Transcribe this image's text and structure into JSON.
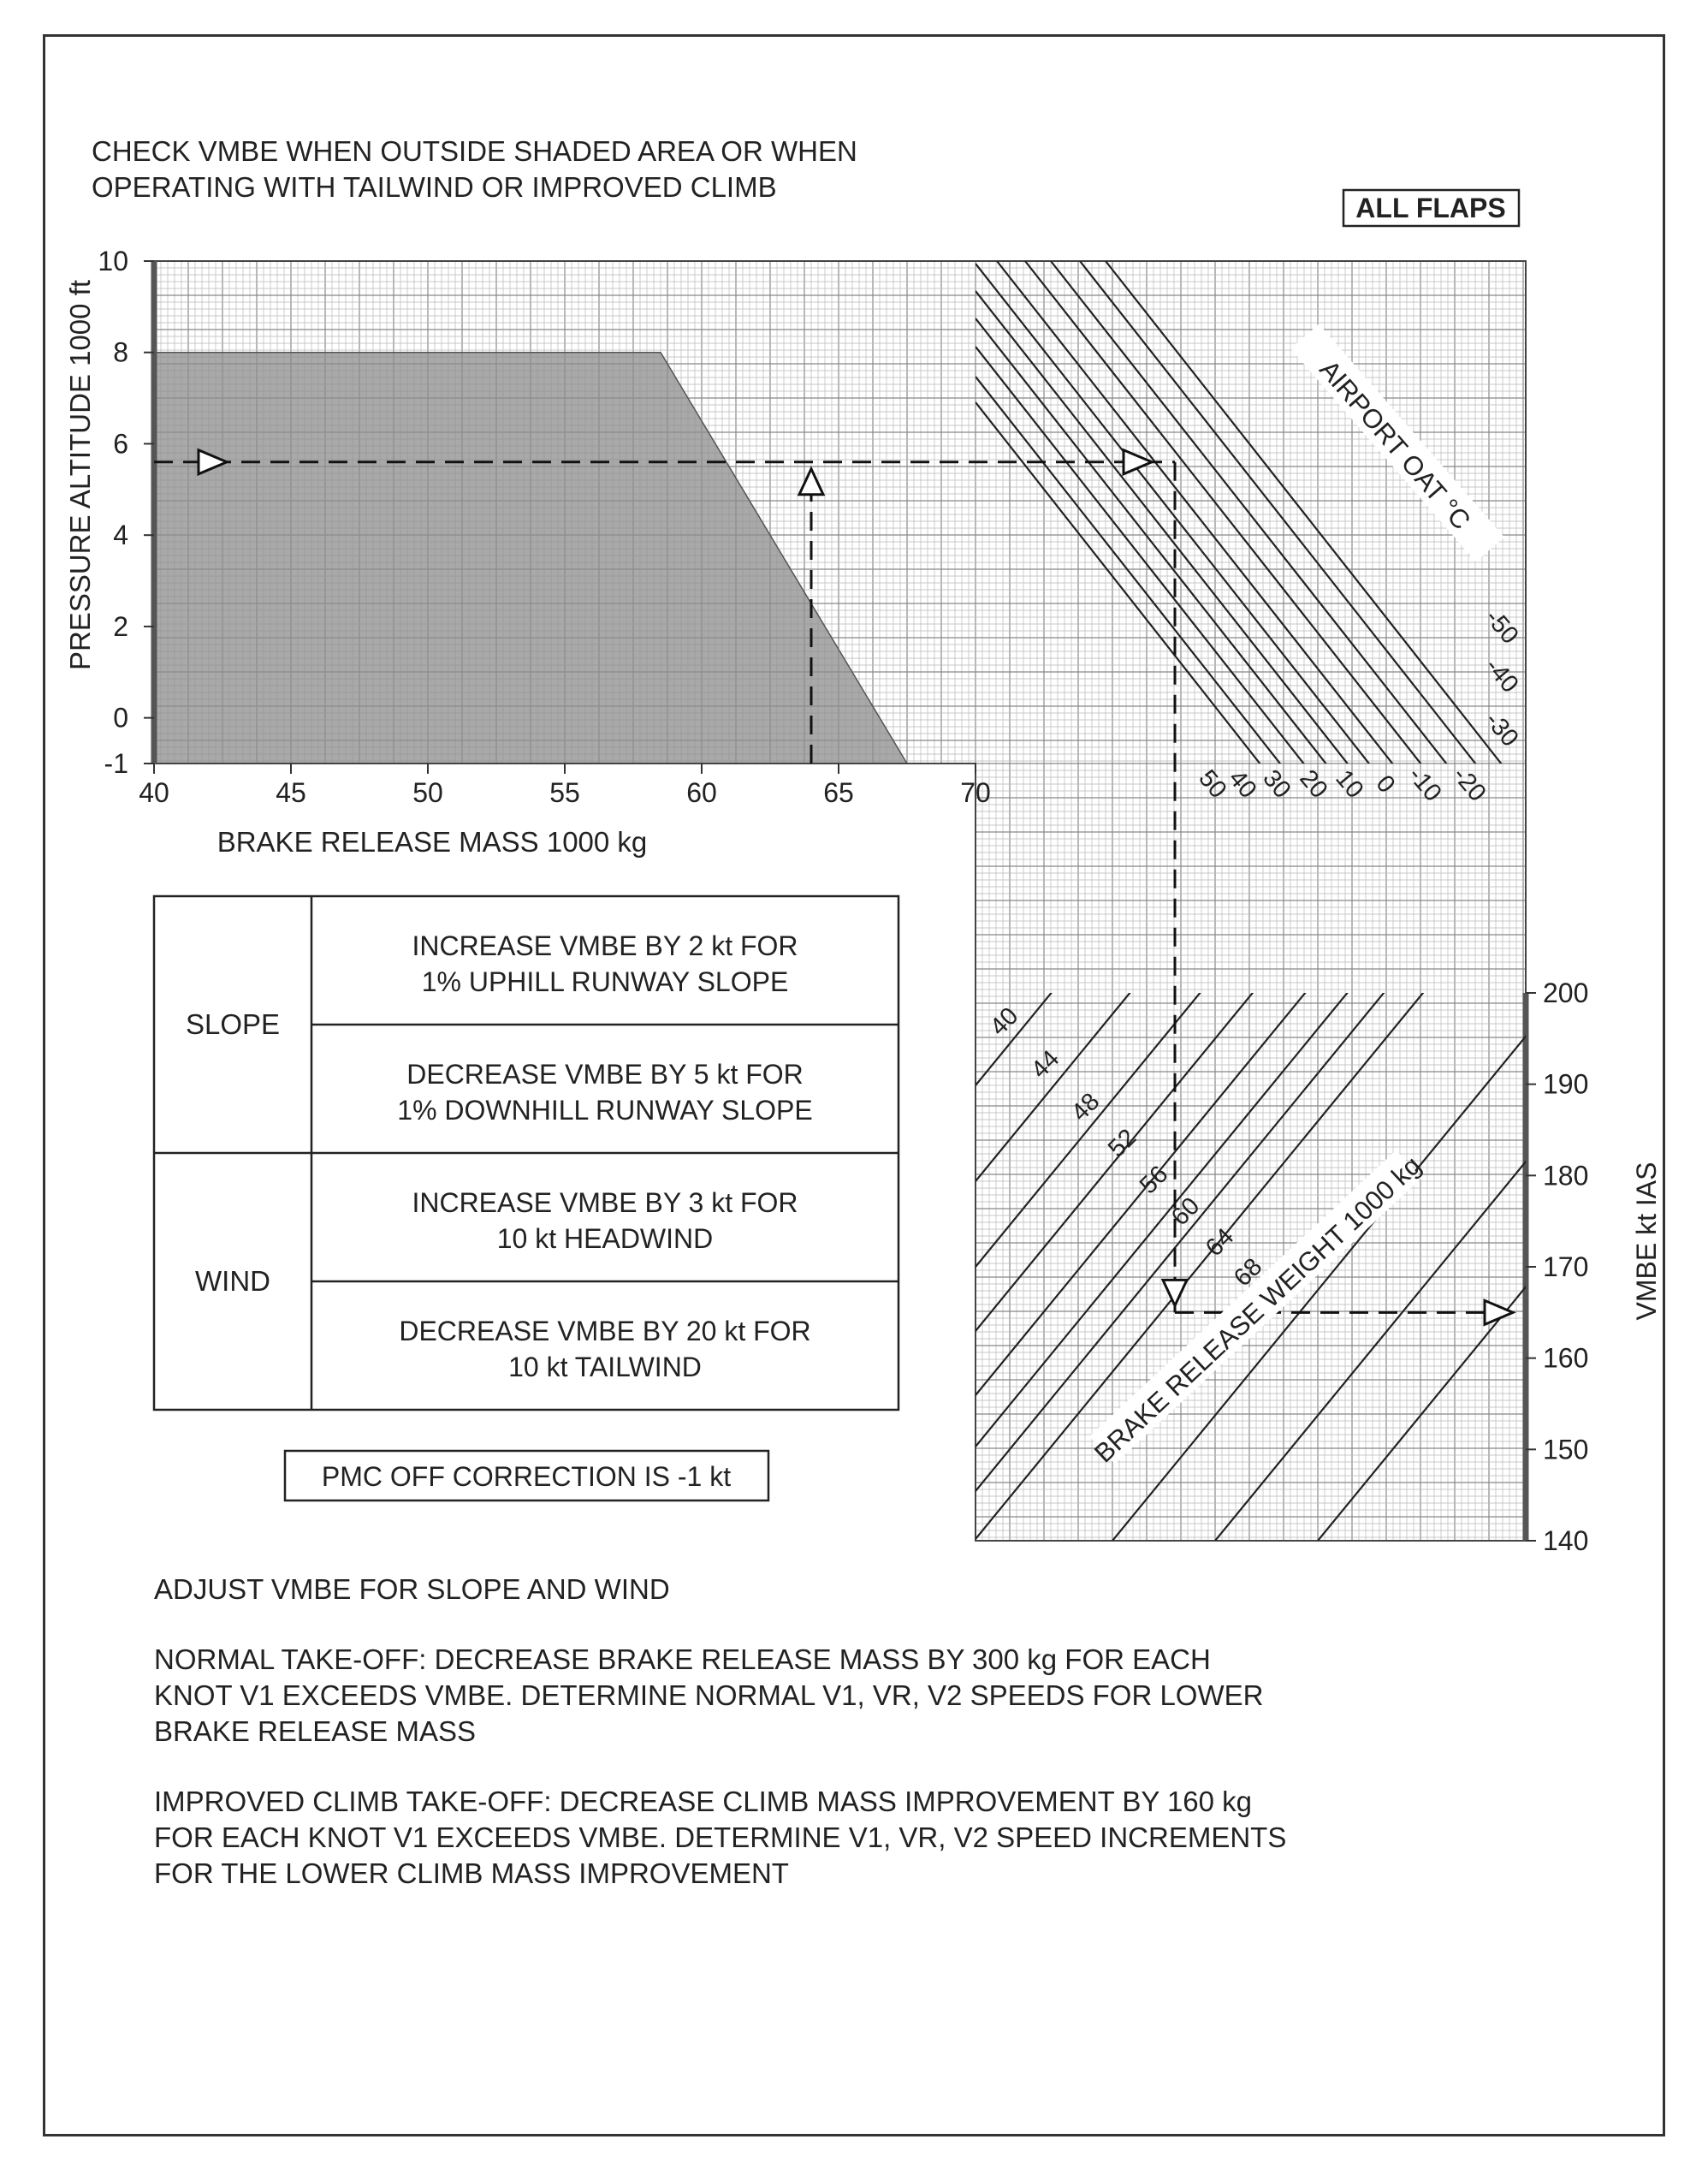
{
  "header": {
    "check_line1": "CHECK VMBE WHEN OUTSIDE SHADED AREA OR WHEN",
    "check_line2": "OPERATING WITH TAILWIND OR IMPROVED CLIMB",
    "flaps_label": "ALL FLAPS"
  },
  "chart_data": [
    {
      "type": "area",
      "panel": "pressure-altitude vs brake release mass",
      "ylabel": "PRESSURE ALTITUDE  1000 ft",
      "xlabel": "BRAKE RELEASE MASS  1000 kg",
      "xlim": [
        40,
        70
      ],
      "ylim": [
        -1,
        10
      ],
      "x_ticks": [
        "40",
        "45",
        "50",
        "55",
        "60",
        "65",
        "70"
      ],
      "y_ticks": [
        "10",
        "8",
        "6",
        "4",
        "2",
        "0",
        "-1"
      ],
      "shaded_region": {
        "name": "",
        "points": [
          [
            40,
            -1
          ],
          [
            40,
            8
          ],
          [
            58.5,
            8
          ],
          [
            67.5,
            -1
          ]
        ]
      },
      "example_path": {
        "mass": 64,
        "altitude": 5.6
      }
    },
    {
      "type": "line",
      "panel": "airport OAT lines",
      "series_label": "AIRPORT OAT °C",
      "oat_labels_bottom": [
        "50",
        "40",
        "30",
        "20",
        "10",
        "0",
        "-10",
        "-20"
      ],
      "oat_labels_side": [
        "-30",
        "-40",
        "-50"
      ]
    },
    {
      "type": "line",
      "panel": "VMBE vs brake release weight",
      "ylabel": "VMBE  kt IAS",
      "ylim": [
        140,
        200
      ],
      "y_ticks": [
        "200",
        "190",
        "180",
        "170",
        "160",
        "150",
        "140"
      ],
      "series_label": "BRAKE RELEASE WEIGHT  1000 kg",
      "weight_labels": [
        "40",
        "44",
        "48",
        "52",
        "56",
        "60",
        "64",
        "68"
      ],
      "example_result": {
        "vmbe": 165
      }
    }
  ],
  "corrections": {
    "slope_label": "SLOPE",
    "slope_up_line1": "INCREASE VMBE BY 2 kt FOR",
    "slope_up_line2": "1% UPHILL RUNWAY SLOPE",
    "slope_down_line1": "DECREASE VMBE BY 5 kt FOR",
    "slope_down_line2": "1% DOWNHILL RUNWAY SLOPE",
    "wind_label": "WIND",
    "wind_head_line1": "INCREASE VMBE BY 3 kt FOR",
    "wind_head_line2": "10 kt HEADWIND",
    "wind_tail_line1": "DECREASE VMBE BY 20 kt FOR",
    "wind_tail_line2": "10 kt TAILWIND"
  },
  "pmc_note": "PMC OFF CORRECTION IS -1 kt",
  "notes": {
    "adjust": "ADJUST VMBE FOR SLOPE AND WIND",
    "normal_line1": "NORMAL TAKE-OFF:   DECREASE BRAKE RELEASE MASS BY 300 kg FOR EACH",
    "normal_line2": "KNOT V1 EXCEEDS VMBE.  DETERMINE NORMAL V1, VR, V2 SPEEDS FOR LOWER",
    "normal_line3": "BRAKE RELEASE MASS",
    "improved_line1": "IMPROVED CLIMB TAKE-OFF:   DECREASE CLIMB MASS IMPROVEMENT BY 160 kg",
    "improved_line2": "FOR EACH KNOT V1 EXCEEDS VMBE.  DETERMINE V1, VR, V2 SPEED INCREMENTS",
    "improved_line3": "FOR THE LOWER CLIMB MASS IMPROVEMENT"
  }
}
